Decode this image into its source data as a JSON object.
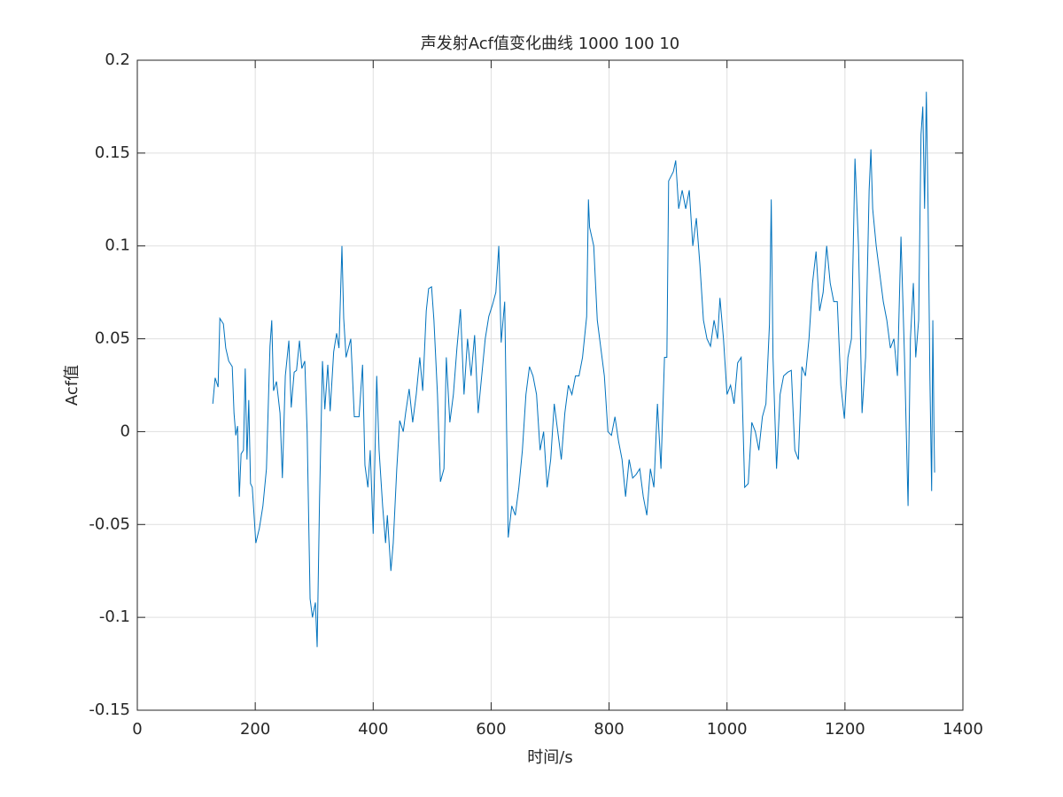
{
  "chart_data": {
    "type": "line",
    "title": "声发射Acf值变化曲线 1000 100 10",
    "xlabel": "时间/s",
    "ylabel": "Acf值",
    "xlim": [
      0,
      1400
    ],
    "xticks": [
      0,
      200,
      400,
      600,
      800,
      1000,
      1200,
      1400
    ],
    "ylim": [
      -0.15,
      0.2
    ],
    "yticks": [
      -0.15,
      -0.1,
      -0.05,
      0,
      0.05,
      0.1,
      0.15,
      0.2
    ],
    "grid": true,
    "series": [
      {
        "color": "#0072bd",
        "x": [
          128,
          132,
          137,
          140,
          146,
          150,
          155,
          161,
          164,
          167,
          170,
          173,
          176,
          180,
          183,
          186,
          189,
          192,
          195,
          201,
          207,
          213,
          219,
          225,
          228,
          231,
          236,
          242,
          246,
          251,
          257,
          261,
          266,
          270,
          275,
          279,
          284,
          288,
          293,
          297,
          302,
          305,
          309,
          314,
          318,
          323,
          327,
          333,
          338,
          342,
          347,
          350,
          354,
          362,
          368,
          376,
          382,
          386,
          391,
          395,
          400,
          406,
          410,
          416,
          421,
          424,
          430,
          434,
          440,
          445,
          451,
          455,
          461,
          467,
          473,
          479,
          484,
          490,
          494,
          499,
          503,
          509,
          514,
          520,
          524,
          530,
          536,
          542,
          548,
          554,
          560,
          566,
          572,
          578,
          584,
          590,
          596,
          602,
          608,
          613,
          617,
          623,
          629,
          635,
          641,
          647,
          653,
          659,
          665,
          671,
          677,
          683,
          689,
          695,
          701,
          707,
          713,
          719,
          725,
          731,
          737,
          743,
          749,
          755,
          762,
          765,
          767,
          774,
          780,
          786,
          792,
          798,
          804,
          810,
          816,
          822,
          828,
          834,
          840,
          846,
          852,
          858,
          864,
          870,
          876,
          882,
          888,
          894,
          898,
          901,
          909,
          913,
          918,
          924,
          930,
          936,
          942,
          948,
          954,
          960,
          966,
          972,
          978,
          984,
          988,
          994,
          1000,
          1006,
          1012,
          1018,
          1024,
          1030,
          1036,
          1042,
          1048,
          1054,
          1060,
          1066,
          1072,
          1075,
          1078,
          1084,
          1090,
          1096,
          1103,
          1109,
          1115,
          1121,
          1127,
          1133,
          1139,
          1145,
          1151,
          1157,
          1163,
          1169,
          1175,
          1181,
          1187,
          1193,
          1199,
          1205,
          1211,
          1217,
          1223,
          1229,
          1235,
          1241,
          1244,
          1247,
          1253,
          1259,
          1265,
          1271,
          1277,
          1283,
          1289,
          1295,
          1301,
          1307,
          1311,
          1316,
          1320,
          1325,
          1329,
          1332,
          1335,
          1338,
          1341,
          1344,
          1347,
          1349,
          1351,
          1352
        ],
        "values": [
          0.015,
          0.029,
          0.024,
          0.061,
          0.058,
          0.045,
          0.038,
          0.035,
          0.01,
          -0.002,
          0.003,
          -0.035,
          -0.012,
          -0.01,
          0.034,
          -0.015,
          0.017,
          -0.028,
          -0.03,
          -0.06,
          -0.052,
          -0.04,
          -0.02,
          0.046,
          0.06,
          0.022,
          0.027,
          0.01,
          -0.025,
          0.03,
          0.049,
          0.013,
          0.032,
          0.033,
          0.049,
          0.034,
          0.038,
          0.0,
          -0.09,
          -0.1,
          -0.092,
          -0.116,
          -0.037,
          0.038,
          0.012,
          0.036,
          0.011,
          0.043,
          0.053,
          0.045,
          0.1,
          0.061,
          0.04,
          0.05,
          0.008,
          0.008,
          0.036,
          -0.018,
          -0.03,
          -0.01,
          -0.055,
          0.03,
          -0.01,
          -0.04,
          -0.06,
          -0.045,
          -0.075,
          -0.06,
          -0.02,
          0.006,
          0.0,
          0.01,
          0.023,
          0.005,
          0.02,
          0.04,
          0.022,
          0.065,
          0.077,
          0.078,
          0.06,
          0.02,
          -0.027,
          -0.02,
          0.04,
          0.005,
          0.02,
          0.045,
          0.066,
          0.02,
          0.05,
          0.03,
          0.052,
          0.01,
          0.03,
          0.05,
          0.062,
          0.068,
          0.075,
          0.1,
          0.048,
          0.07,
          -0.057,
          -0.04,
          -0.045,
          -0.03,
          -0.01,
          0.02,
          0.035,
          0.03,
          0.02,
          -0.01,
          0.0,
          -0.03,
          -0.015,
          0.015,
          0.0,
          -0.015,
          0.01,
          0.025,
          0.02,
          0.03,
          0.03,
          0.04,
          0.062,
          0.125,
          0.11,
          0.1,
          0.06,
          0.045,
          0.03,
          0.0,
          -0.002,
          0.008,
          -0.005,
          -0.015,
          -0.035,
          -0.015,
          -0.025,
          -0.023,
          -0.02,
          -0.035,
          -0.045,
          -0.02,
          -0.03,
          0.015,
          -0.02,
          0.04,
          0.04,
          0.135,
          0.14,
          0.146,
          0.12,
          0.13,
          0.12,
          0.13,
          0.1,
          0.115,
          0.09,
          0.06,
          0.05,
          0.046,
          0.06,
          0.05,
          0.072,
          0.05,
          0.02,
          0.025,
          0.015,
          0.037,
          0.04,
          -0.03,
          -0.028,
          0.005,
          0.0,
          -0.01,
          0.008,
          0.015,
          0.058,
          0.125,
          0.04,
          -0.02,
          0.02,
          0.03,
          0.032,
          0.033,
          -0.01,
          -0.015,
          0.035,
          0.03,
          0.05,
          0.08,
          0.097,
          0.065,
          0.075,
          0.1,
          0.08,
          0.07,
          0.07,
          0.025,
          0.007,
          0.04,
          0.05,
          0.147,
          0.1,
          0.01,
          0.04,
          0.13,
          0.152,
          0.12,
          0.1,
          0.085,
          0.07,
          0.06,
          0.045,
          0.05,
          0.03,
          0.105,
          0.04,
          -0.04,
          0.05,
          0.08,
          0.04,
          0.06,
          0.16,
          0.175,
          0.12,
          0.183,
          0.12,
          0.03,
          -0.032,
          0.06,
          0.0,
          -0.022
        ]
      }
    ]
  }
}
